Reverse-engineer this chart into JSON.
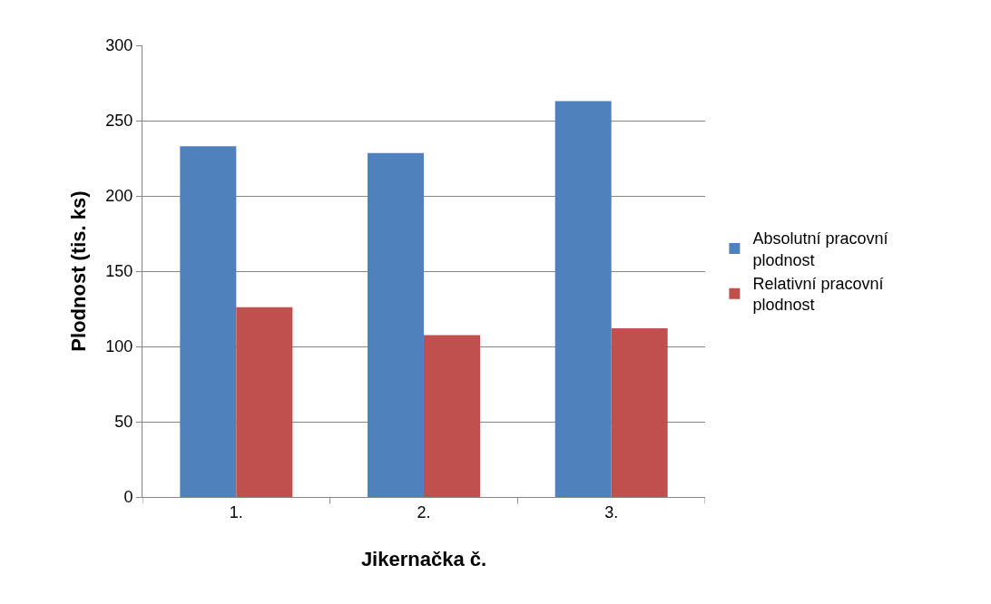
{
  "chart_data": {
    "type": "bar",
    "xlabel": "Jikernačka č.",
    "ylabel": "Plodnost (tis. ks)",
    "categories": [
      "1.",
      "2.",
      "3."
    ],
    "series": [
      {
        "name": "Absolutní pracovní plodnost",
        "color": "#4f81bd",
        "values": [
          233,
          228.5,
          263
        ]
      },
      {
        "name": "Relativní pracovní plodnost",
        "color": "#c0504d",
        "values": [
          126,
          107.5,
          112
        ]
      }
    ],
    "ylim": [
      0,
      300
    ],
    "yticks": [
      0,
      50,
      100,
      150,
      200,
      250,
      300
    ],
    "grid": "y",
    "legend": "right"
  }
}
